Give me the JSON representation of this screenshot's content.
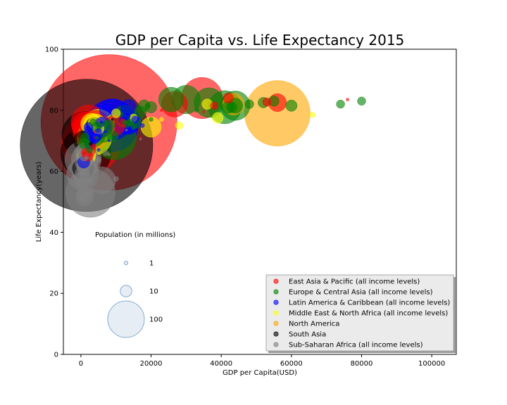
{
  "chart_data": {
    "type": "scatter",
    "title": "GDP per Capita vs. Life Expectancy 2015",
    "xlabel": "GDP per Capita(USD)",
    "ylabel": "Life Expectancy(years)",
    "xlim": [
      -5000,
      107000
    ],
    "ylim": [
      0,
      100
    ],
    "xticks": [
      0,
      20000,
      40000,
      60000,
      80000,
      100000
    ],
    "xtick_labels": [
      "0",
      "20000",
      "40000",
      "60000",
      "80000",
      "100000"
    ],
    "yticks": [
      0,
      20,
      40,
      60,
      80,
      100
    ],
    "ytick_labels": [
      "0",
      "20",
      "40",
      "60",
      "80",
      "100"
    ],
    "grid": false,
    "legend_position": "lower-right",
    "size_legend": {
      "title": "Population (in millions)",
      "entries": [
        {
          "label": "1",
          "value": 1
        },
        {
          "label": "10",
          "value": 10
        },
        {
          "label": "100",
          "value": 100
        }
      ]
    },
    "series": [
      {
        "name": "East Asia & Pacific (all income levels)",
        "color": "#ff0000",
        "points": [
          [
            8000,
            76,
            1380
          ],
          [
            34500,
            84,
            127
          ],
          [
            2200,
            76,
            92
          ],
          [
            1200,
            75,
            53
          ],
          [
            2800,
            69,
            258
          ],
          [
            3000,
            73,
            104
          ],
          [
            4000,
            75,
            68
          ],
          [
            26700,
            82,
            50
          ],
          [
            42000,
            84,
            8
          ],
          [
            53000,
            82.7,
            5.5
          ],
          [
            56000,
            82.5,
            24
          ],
          [
            38000,
            81.5,
            4.5
          ],
          [
            9700,
            75,
            31
          ],
          [
            12000,
            76,
            4
          ],
          [
            1500,
            66,
            7
          ],
          [
            2100,
            67,
            16
          ],
          [
            3500,
            68,
            3
          ],
          [
            76000,
            83.5,
            0.6
          ],
          [
            2000,
            65,
            8
          ],
          [
            35000,
            79.5,
            0.4
          ],
          [
            17000,
            71,
            0.3
          ],
          [
            3800,
            71,
            0.1
          ],
          [
            4000,
            73,
            0.3
          ],
          [
            23000,
            80,
            0.6
          ],
          [
            1000,
            66,
            0.5
          ]
        ]
      },
      {
        "name": "Europe & Central Asia (all income levels)",
        "color": "#008000",
        "points": [
          [
            41000,
            81,
            82
          ],
          [
            36500,
            82.5,
            66
          ],
          [
            44000,
            81.5,
            65
          ],
          [
            30000,
            83.5,
            61
          ],
          [
            25700,
            83.5,
            46
          ],
          [
            9500,
            71,
            144
          ],
          [
            12500,
            78,
            38
          ],
          [
            8000,
            75,
            10
          ],
          [
            20000,
            81,
            10
          ],
          [
            48000,
            82,
            6
          ],
          [
            42000,
            81,
            11
          ],
          [
            44000,
            81.5,
            17
          ],
          [
            52000,
            82.5,
            8.5
          ],
          [
            80000,
            83,
            5.2
          ],
          [
            74000,
            82,
            5.2
          ],
          [
            60000,
            81.5,
            9.8
          ],
          [
            55000,
            83,
            8.4
          ],
          [
            43000,
            81,
            8.7
          ],
          [
            17000,
            79.5,
            10.5
          ],
          [
            18000,
            81.5,
            10.3
          ],
          [
            19000,
            81.5,
            2
          ],
          [
            3500,
            72,
            45
          ],
          [
            6500,
            72,
            17.5
          ],
          [
            9000,
            71.5,
            9.5
          ],
          [
            4500,
            74.5,
            7.1
          ],
          [
            7000,
            75.5,
            3
          ],
          [
            14000,
            76,
            3.5
          ],
          [
            17000,
            77,
            0.75
          ],
          [
            12500,
            76,
            2.1
          ],
          [
            2500,
            67,
            3
          ],
          [
            1000,
            69,
            8.5
          ],
          [
            1200,
            71,
            6
          ],
          [
            3500,
            76,
            3.7
          ],
          [
            5000,
            75,
            2.9
          ],
          [
            4500,
            71,
            0.6
          ],
          [
            2000,
            69,
            3.5
          ],
          [
            16000,
            75.5,
            5.4
          ],
          [
            15000,
            74.5,
            2
          ],
          [
            20000,
            77,
            1.3
          ],
          [
            33000,
            80,
            1.2
          ],
          [
            9000,
            71,
            0.4
          ]
        ]
      },
      {
        "name": "Latin America & Caribbean (all income levels)",
        "color": "#0000ff",
        "points": [
          [
            8800,
            75,
            206
          ],
          [
            9000,
            77,
            127
          ],
          [
            13500,
            76.5,
            48
          ],
          [
            13400,
            76,
            43
          ],
          [
            6000,
            74.5,
            31
          ],
          [
            13600,
            81,
            18
          ],
          [
            3000,
            73,
            16
          ],
          [
            6500,
            74.5,
            10.7
          ],
          [
            3800,
            71,
            11
          ],
          [
            2600,
            69,
            9
          ],
          [
            5500,
            76,
            6.6
          ],
          [
            15500,
            77,
            3.4
          ],
          [
            2100,
            74.5,
            6.1
          ],
          [
            12000,
            76.5,
            4.8
          ],
          [
            13000,
            78,
            4
          ],
          [
            4000,
            72,
            16.2
          ],
          [
            7000,
            80,
            11.3
          ],
          [
            5000,
            73,
            2.9
          ],
          [
            17500,
            75,
            1.4
          ],
          [
            800,
            63,
            10.7
          ],
          [
            5000,
            67,
            0.8
          ],
          [
            8000,
            70,
            0.4
          ]
        ]
      },
      {
        "name": "Middle East & North Africa (all income levels)",
        "color": "#ffff00",
        "points": [
          [
            20000,
            74.5,
            31
          ],
          [
            5000,
            75,
            79
          ],
          [
            4000,
            75,
            40
          ],
          [
            3800,
            71,
            91
          ],
          [
            3000,
            75.5,
            34
          ],
          [
            3800,
            76,
            11
          ],
          [
            4500,
            75,
            23
          ],
          [
            39000,
            77.5,
            9.2
          ],
          [
            66000,
            78.5,
            2.2
          ],
          [
            10000,
            79,
            6
          ],
          [
            5000,
            74,
            9.5
          ],
          [
            36000,
            82,
            8.4
          ],
          [
            28000,
            75,
            4.3
          ],
          [
            23000,
            77,
            1.4
          ],
          [
            15000,
            77.5,
            4.6
          ],
          [
            1500,
            65,
            27
          ]
        ]
      },
      {
        "name": "North America",
        "color": "#ffa500",
        "points": [
          [
            56000,
            79,
            321
          ],
          [
            43500,
            82,
            36
          ]
        ]
      },
      {
        "name": "South Asia",
        "color": "#000000",
        "points": [
          [
            1600,
            68.5,
            1311
          ],
          [
            1200,
            72,
            161
          ],
          [
            1400,
            66,
            189
          ],
          [
            3800,
            75,
            21
          ],
          [
            700,
            70,
            29
          ],
          [
            600,
            61,
            33
          ],
          [
            2800,
            69,
            0.8
          ],
          [
            9000,
            77,
            0.4
          ]
        ]
      },
      {
        "name": "Sub-Saharan Africa (all income levels)",
        "color": "#808080",
        "points": [
          [
            2700,
            53,
            182
          ],
          [
            600,
            64,
            99
          ],
          [
            500,
            59,
            77
          ],
          [
            1400,
            62,
            46
          ],
          [
            1100,
            64,
            54
          ],
          [
            800,
            59,
            39
          ],
          [
            6000,
            57,
            55
          ],
          [
            1500,
            61.5,
            27
          ],
          [
            900,
            63,
            24
          ],
          [
            700,
            66,
            24
          ],
          [
            1000,
            51.5,
            23
          ],
          [
            400,
            57,
            22
          ],
          [
            500,
            59,
            18
          ],
          [
            1300,
            66,
            15
          ],
          [
            1200,
            52.5,
            18
          ],
          [
            600,
            62,
            11
          ],
          [
            800,
            67,
            15
          ],
          [
            3000,
            61,
            12
          ],
          [
            1300,
            57.5,
            10.9
          ],
          [
            500,
            56,
            11.2
          ],
          [
            700,
            59,
            7
          ],
          [
            900,
            65,
            7.4
          ],
          [
            1600,
            53,
            4.9
          ],
          [
            700,
            51.5,
            6.5
          ],
          [
            5000,
            64,
            2.3
          ],
          [
            7000,
            66,
            2.2
          ],
          [
            10000,
            57.5,
            1.9
          ],
          [
            4800,
            63.5,
            2.2
          ],
          [
            8000,
            65.5,
            0.7
          ],
          [
            13000,
            73.5,
            0.4
          ],
          [
            1000,
            60,
            1.9
          ],
          [
            600,
            59.5,
            1.8
          ],
          [
            1500,
            64.5,
            0.8
          ],
          [
            3000,
            56.5,
            1.1
          ],
          [
            17000,
            70.5,
            0.3
          ],
          [
            2500,
            53,
            5
          ],
          [
            400,
            51,
            4.5
          ],
          [
            450,
            59,
            2.5
          ]
        ]
      }
    ]
  }
}
